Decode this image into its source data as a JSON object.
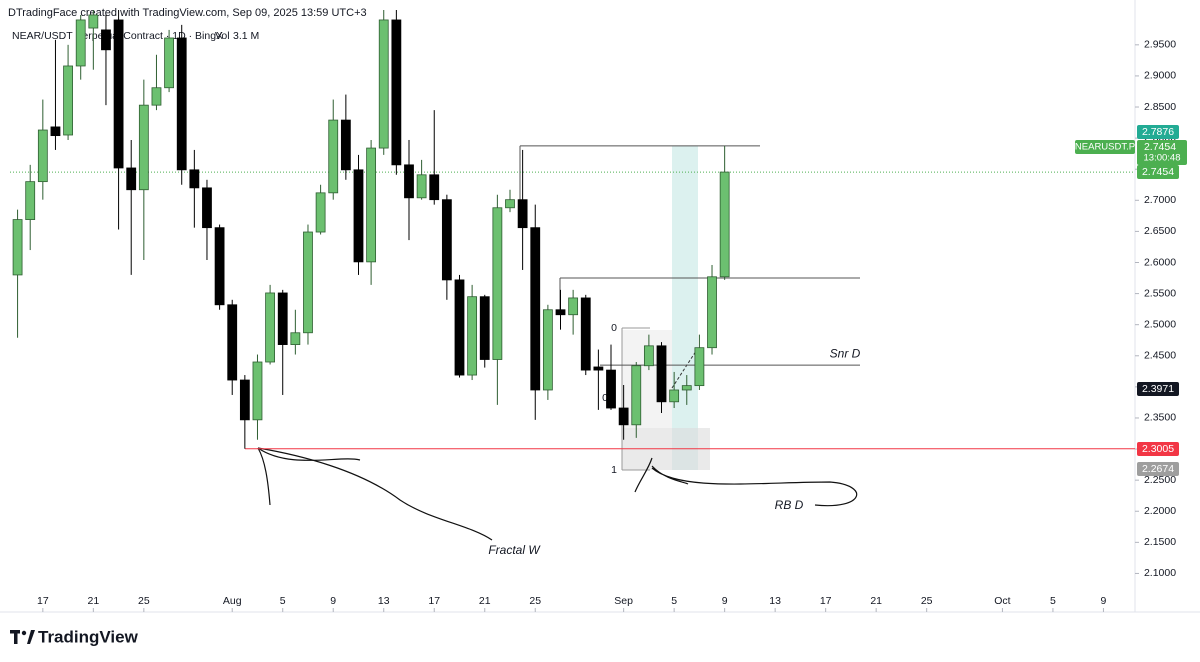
{
  "chart_data": {
    "type": "candlestick",
    "header": "DTradingFace created with TradingView.com, Sep 09, 2025 13:59 UTC+3",
    "symbol_title": "NEAR/USDT Perpetual Contract · 1D · BingX",
    "volume_label": "Vol",
    "volume_value": "3.1 M",
    "logo": "TradingView",
    "up_color": "#6cc070",
    "down_color": "#000000",
    "x": [
      -17,
      -16,
      -15,
      -14,
      -13,
      -12,
      -11,
      -10,
      -9,
      -8,
      -7,
      -6,
      -5,
      -4,
      -3,
      -2,
      -1,
      0,
      1,
      2,
      3,
      4,
      5,
      6,
      7,
      8,
      9,
      10,
      11,
      12,
      13,
      14,
      15,
      16,
      17,
      18,
      19,
      20,
      21,
      22,
      23,
      24,
      25,
      26,
      27,
      28,
      29,
      30,
      31,
      32,
      33,
      34,
      35,
      36,
      37,
      38,
      39
    ],
    "open": [
      2.58,
      2.669,
      2.73,
      2.818,
      2.805,
      2.916,
      2.977,
      2.974,
      2.99,
      2.752,
      2.717,
      2.853,
      2.881,
      2.961,
      2.749,
      2.72,
      2.656,
      2.532,
      2.411,
      2.347,
      2.44,
      2.551,
      2.468,
      2.487,
      2.649,
      2.712,
      2.829,
      2.749,
      2.601,
      2.784,
      2.99,
      2.757,
      2.704,
      2.741,
      2.701,
      2.572,
      2.419,
      2.545,
      2.444,
      2.688,
      2.701,
      2.656,
      2.395,
      2.524,
      2.516,
      2.543,
      2.432,
      2.427,
      2.366,
      2.339,
      2.434,
      2.466,
      2.376,
      2.395,
      2.402,
      2.463,
      2.577
    ],
    "high": [
      2.685,
      2.757,
      2.862,
      2.958,
      2.95,
      2.998,
      3.006,
      2.998,
      3.006,
      2.797,
      2.894,
      2.934,
      2.974,
      2.982,
      2.781,
      2.733,
      2.661,
      2.54,
      2.419,
      2.452,
      2.564,
      2.556,
      2.524,
      2.661,
      2.725,
      2.862,
      2.87,
      2.773,
      2.797,
      3.006,
      3.006,
      2.797,
      2.765,
      2.845,
      2.709,
      2.58,
      2.564,
      2.548,
      2.709,
      2.717,
      2.781,
      2.693,
      2.532,
      2.556,
      2.556,
      2.548,
      2.46,
      2.468,
      2.403,
      2.44,
      2.484,
      2.472,
      2.424,
      2.419,
      2.484,
      2.596,
      2.7876
    ],
    "low": [
      2.479,
      2.62,
      2.701,
      2.781,
      2.797,
      2.894,
      2.91,
      2.853,
      2.653,
      2.58,
      2.604,
      2.845,
      2.874,
      2.725,
      2.656,
      2.604,
      2.524,
      2.387,
      2.3005,
      2.315,
      2.436,
      2.387,
      2.452,
      2.468,
      2.645,
      2.701,
      2.733,
      2.58,
      2.564,
      2.773,
      2.741,
      2.636,
      2.701,
      2.693,
      2.54,
      2.415,
      2.411,
      2.431,
      2.371,
      2.681,
      2.588,
      2.347,
      2.379,
      2.492,
      2.484,
      2.419,
      2.363,
      2.363,
      2.315,
      2.318,
      2.427,
      2.358,
      2.366,
      2.371,
      2.395,
      2.452,
      2.572
    ],
    "close": [
      2.669,
      2.73,
      2.813,
      2.804,
      2.916,
      2.99,
      2.998,
      2.942,
      2.752,
      2.717,
      2.853,
      2.881,
      2.961,
      2.749,
      2.72,
      2.656,
      2.532,
      2.411,
      2.347,
      2.44,
      2.551,
      2.468,
      2.487,
      2.649,
      2.712,
      2.829,
      2.749,
      2.601,
      2.784,
      2.99,
      2.757,
      2.704,
      2.741,
      2.701,
      2.572,
      2.419,
      2.545,
      2.444,
      2.688,
      2.701,
      2.656,
      2.395,
      2.524,
      2.516,
      2.543,
      2.427,
      2.427,
      2.366,
      2.339,
      2.434,
      2.466,
      2.376,
      2.395,
      2.402,
      2.463,
      2.577,
      2.7454
    ],
    "xlim": [
      -17.6,
      71.5
    ],
    "ylim": [
      2.038,
      3.006
    ],
    "xticks": [
      {
        "value": -15,
        "label": "17"
      },
      {
        "value": -11,
        "label": "21"
      },
      {
        "value": -7,
        "label": "25"
      },
      {
        "value": 0,
        "label": "Aug"
      },
      {
        "value": 4,
        "label": "5"
      },
      {
        "value": 8,
        "label": "9"
      },
      {
        "value": 12,
        "label": "13"
      },
      {
        "value": 16,
        "label": "17"
      },
      {
        "value": 20,
        "label": "21"
      },
      {
        "value": 24,
        "label": "25"
      },
      {
        "value": 31,
        "label": "Sep"
      },
      {
        "value": 35,
        "label": "5"
      },
      {
        "value": 39,
        "label": "9"
      },
      {
        "value": 43,
        "label": "13"
      },
      {
        "value": 47,
        "label": "17"
      },
      {
        "value": 51,
        "label": "21"
      },
      {
        "value": 55,
        "label": "25"
      },
      {
        "value": 61,
        "label": "Oct"
      },
      {
        "value": 65,
        "label": "5"
      },
      {
        "value": 69,
        "label": "9"
      }
    ],
    "yticks": [
      {
        "value": 2.95,
        "label": "2.9500"
      },
      {
        "value": 2.9,
        "label": "2.9000"
      },
      {
        "value": 2.85,
        "label": "2.8500"
      },
      {
        "value": 2.8,
        "label": "2.8000"
      },
      {
        "value": 2.75,
        "label": "2.7500"
      },
      {
        "value": 2.7,
        "label": "2.7000"
      },
      {
        "value": 2.65,
        "label": "2.6500"
      },
      {
        "value": 2.6,
        "label": "2.6000"
      },
      {
        "value": 2.55,
        "label": "2.5500"
      },
      {
        "value": 2.5,
        "label": "2.5000"
      },
      {
        "value": 2.45,
        "label": "2.4500"
      },
      {
        "value": 2.4,
        "label": "2.4000"
      },
      {
        "value": 2.35,
        "label": "2.3500"
      },
      {
        "value": 2.3,
        "label": "2.3000"
      },
      {
        "value": 2.25,
        "label": "2.2500"
      },
      {
        "value": 2.2,
        "label": "2.2000"
      },
      {
        "value": 2.15,
        "label": "2.1500"
      },
      {
        "value": 2.1,
        "label": "2.1000"
      }
    ],
    "grid": false,
    "price_labels": [
      {
        "value": 2.7876,
        "color": "#22ab94"
      },
      {
        "value": 2.7454,
        "color": "#4caf50"
      },
      {
        "value": 2.3971,
        "color": "#131722"
      },
      {
        "value": 2.3005,
        "color": "#f23645"
      },
      {
        "value": 2.2674,
        "color": "#9e9e9e"
      }
    ],
    "symbol_box": {
      "name": "NEARUSDT.P",
      "countdown": "13:00:48",
      "color": "#4caf50"
    },
    "levels": [
      {
        "value": 2.7876,
        "color": "#555555"
      },
      {
        "value": 2.575,
        "color": "#555555"
      },
      {
        "value": 2.435,
        "color": "#555555",
        "label": "Snr D"
      },
      {
        "value": 2.3005,
        "color": "#f23645"
      }
    ],
    "annotations": [
      "Fractal W",
      "RB D"
    ],
    "fib_levels": [
      0,
      1,
      0
    ]
  }
}
